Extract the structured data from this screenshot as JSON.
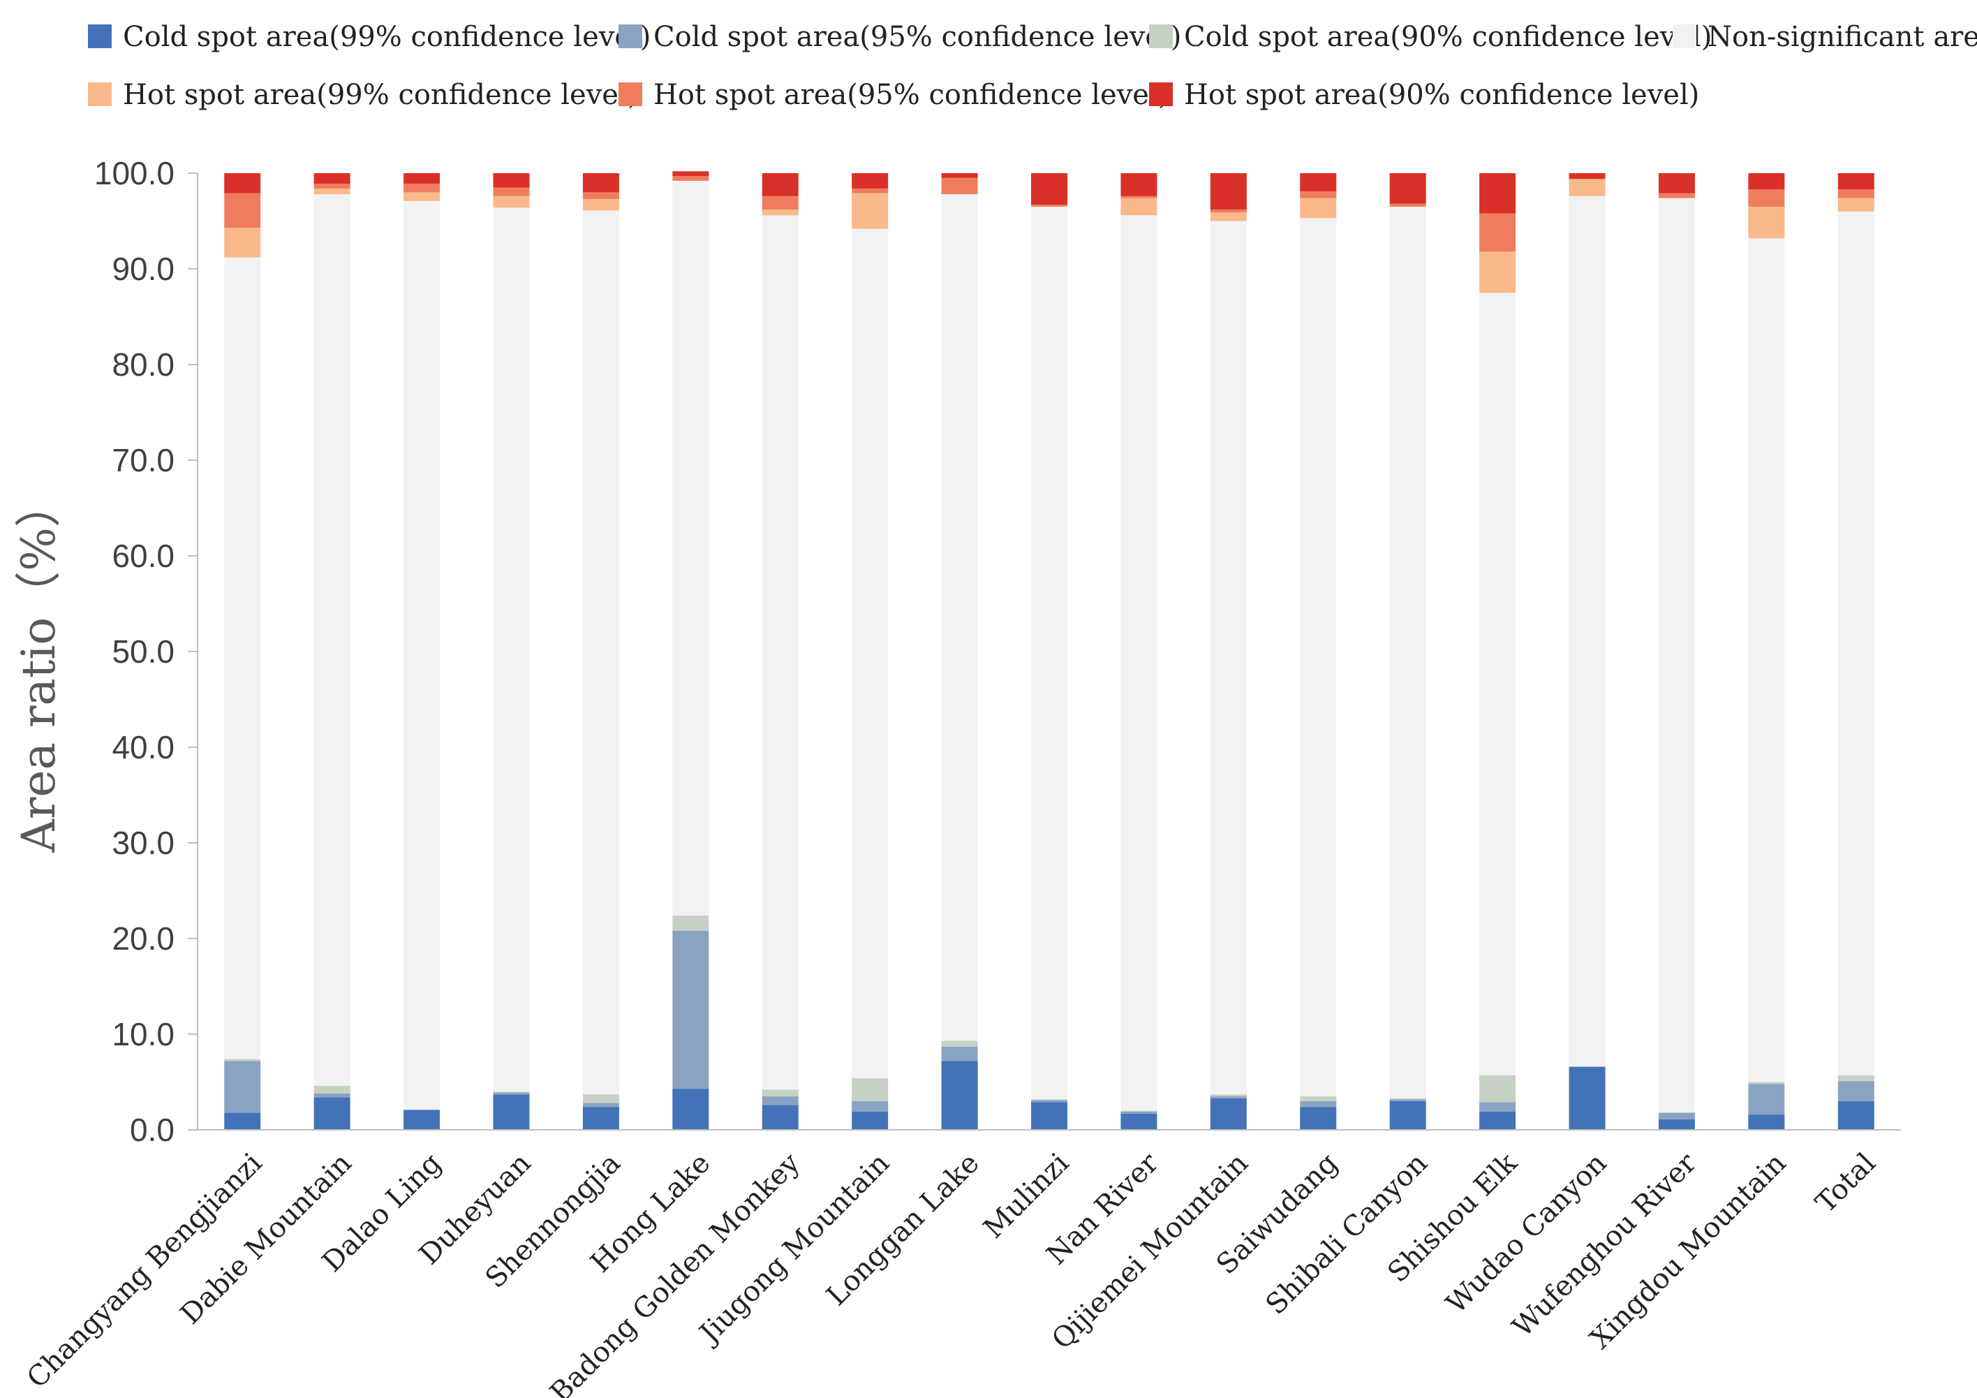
{
  "chart_data": {
    "type": "bar",
    "stacked": true,
    "title": "",
    "xlabel": "",
    "ylabel": "Area ratio（%）",
    "ylim": [
      0,
      100
    ],
    "yticks": [
      "0.0",
      "10.0",
      "20.0",
      "30.0",
      "40.0",
      "50.0",
      "60.0",
      "70.0",
      "80.0",
      "90.0",
      "100.0"
    ],
    "grid": false,
    "legend_position": "top",
    "categories": [
      "Changyang Bengjianzi",
      "Dabie Mountain",
      "Dalao Ling",
      "Duheyuan",
      "Shennongjia",
      "Hong Lake",
      "Badong Golden Monkey",
      "Jiugong Mountain",
      "Longgan Lake",
      "Mulinzi",
      "Nan River",
      "Qijiemei Mountain",
      "Saiwudang",
      "Shibali Canyon",
      "Shishou Elk",
      "Wudao Canyon",
      "Wufenghou River",
      "Xingdou Mountain",
      "Total"
    ],
    "series": [
      {
        "name": "Cold spot area(99% confidence level)",
        "color": "#4472b8",
        "values": [
          1.8,
          3.4,
          2.1,
          3.7,
          2.4,
          4.3,
          2.6,
          1.9,
          7.2,
          2.9,
          1.7,
          3.3,
          2.4,
          3.0,
          1.9,
          6.6,
          1.1,
          1.6,
          3.0
        ]
      },
      {
        "name": "Cold spot area(95% confidence level)",
        "color": "#8aa3c3",
        "values": [
          5.4,
          0.4,
          0.0,
          0.2,
          0.4,
          16.5,
          0.9,
          1.1,
          1.5,
          0.2,
          0.2,
          0.2,
          0.6,
          0.2,
          1.0,
          0.0,
          0.7,
          3.2,
          2.1
        ]
      },
      {
        "name": "Cold spot area(90% confidence level)",
        "color": "#c5d1c3",
        "values": [
          0.2,
          0.8,
          0.0,
          0.1,
          0.9,
          1.6,
          0.7,
          2.4,
          0.6,
          0.1,
          0.1,
          0.2,
          0.5,
          0.1,
          2.8,
          0.0,
          0.0,
          0.2,
          0.6
        ]
      },
      {
        "name": "Non-significant area",
        "color": "#f2f2f2",
        "values": [
          83.8,
          93.2,
          95.0,
          92.4,
          92.4,
          76.8,
          91.4,
          88.8,
          88.5,
          93.3,
          93.6,
          91.3,
          91.8,
          93.2,
          81.8,
          91.0,
          95.6,
          88.2,
          90.3
        ]
      },
      {
        "name": "Hot spot area(99% confidence level)",
        "color": "#f9b98b",
        "values": [
          3.1,
          0.6,
          0.9,
          1.2,
          1.2,
          0.0,
          0.6,
          3.7,
          0.0,
          0.0,
          1.8,
          0.9,
          2.1,
          0.0,
          4.3,
          1.8,
          0.0,
          3.3,
          1.4
        ]
      },
      {
        "name": "Hot spot area(95% confidence level)",
        "color": "#ef7c5f",
        "values": [
          3.6,
          0.5,
          0.9,
          0.9,
          0.7,
          0.5,
          1.4,
          0.5,
          1.7,
          0.2,
          0.2,
          0.3,
          0.7,
          0.3,
          4.0,
          0.0,
          0.5,
          1.8,
          0.9
        ]
      },
      {
        "name": "Hot spot area(90% confidence level)",
        "color": "#d93029",
        "values": [
          2.1,
          1.1,
          1.1,
          1.5,
          2.0,
          0.5,
          2.4,
          1.6,
          0.5,
          3.3,
          2.4,
          3.8,
          1.9,
          3.2,
          4.2,
          0.6,
          2.1,
          1.7,
          1.7
        ]
      }
    ]
  }
}
